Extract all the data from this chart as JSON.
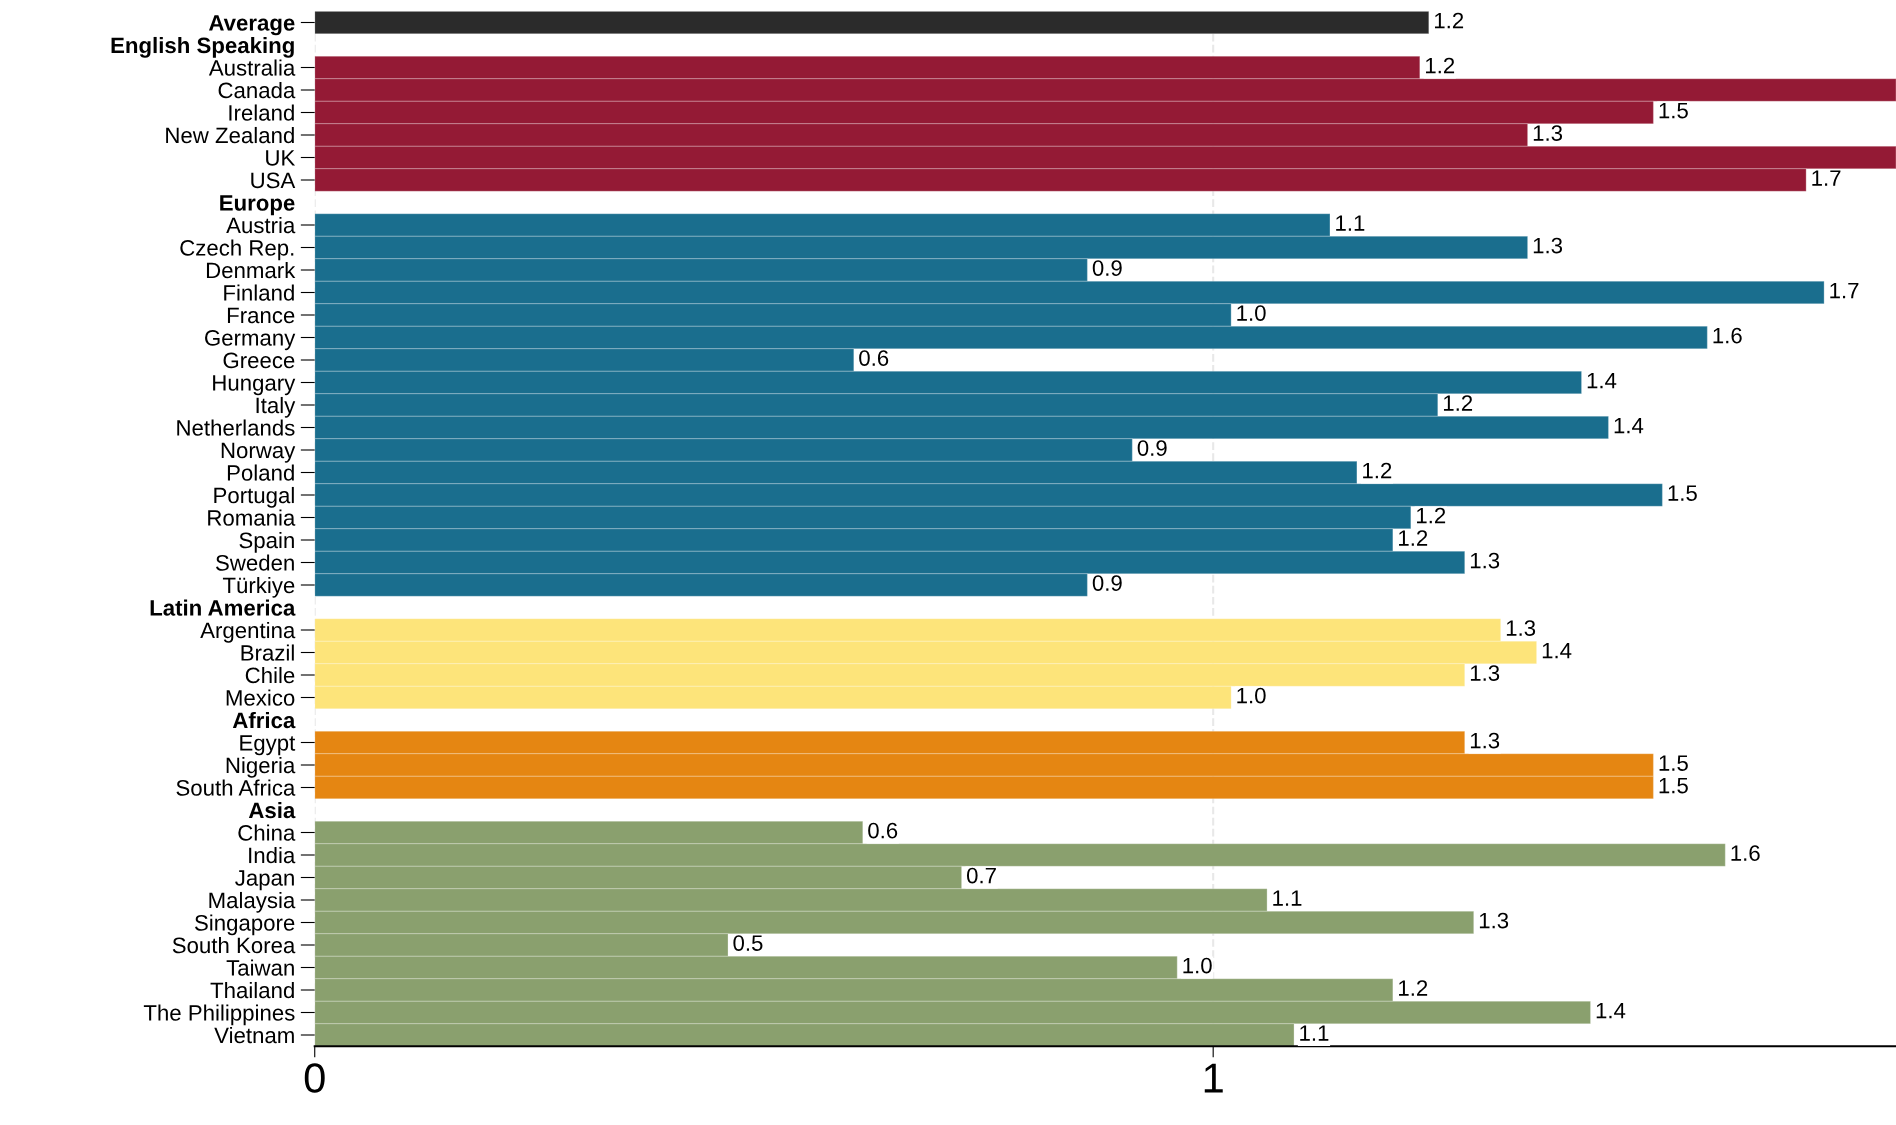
{
  "chart_data": {
    "type": "bar",
    "orientation": "horizontal",
    "categories": [
      "Average",
      "English Speaking",
      "Australia",
      "Canada",
      "Ireland",
      "New Zealand",
      "UK",
      "USA",
      "Europe",
      "Austria",
      "Czech Rep.",
      "Denmark",
      "Finland",
      "France",
      "Germany",
      "Greece",
      "Hungary",
      "Italy",
      "Netherlands",
      "Norway",
      "Poland",
      "Portugal",
      "Romania",
      "Spain",
      "Sweden",
      "Türkiye",
      "Latin America",
      "Argentina",
      "Brazil",
      "Chile",
      "Mexico",
      "Africa",
      "Egypt",
      "Nigeria",
      "South Africa",
      "Asia",
      "China",
      "India",
      "Japan",
      "Malaysia",
      "Singapore",
      "South Korea",
      "Taiwan",
      "Thailand",
      "The Philippines",
      "Vietnam"
    ],
    "series": [
      {
        "color": "#2b2b2b",
        "values": [
          1.24,
          null,
          null,
          null,
          null,
          null,
          null,
          null,
          null,
          null,
          null,
          null,
          null,
          null,
          null,
          null,
          null,
          null,
          null,
          null,
          null,
          null,
          null,
          null,
          null,
          null,
          null,
          null,
          null,
          null,
          null,
          null,
          null,
          null,
          null,
          null,
          null,
          null,
          null,
          null,
          null,
          null,
          null,
          null,
          null,
          null
        ],
        "value_labels": [
          "1.2",
          null,
          null,
          null,
          null,
          null,
          null,
          null,
          null,
          null,
          null,
          null,
          null,
          null,
          null,
          null,
          null,
          null,
          null,
          null,
          null,
          null,
          null,
          null,
          null,
          null,
          null,
          null,
          null,
          null,
          null,
          null,
          null,
          null,
          null,
          null,
          null,
          null,
          null,
          null,
          null,
          null,
          null,
          null,
          null,
          null
        ]
      },
      {
        "color": "#941a35",
        "values": [
          null,
          null,
          1.23,
          1.76,
          1.49,
          1.35,
          1.76,
          1.66,
          null,
          null,
          null,
          null,
          null,
          null,
          null,
          null,
          null,
          null,
          null,
          null,
          null,
          null,
          null,
          null,
          null,
          null,
          null,
          null,
          null,
          null,
          null,
          null,
          null,
          null,
          null,
          null,
          null,
          null,
          null,
          null,
          null,
          null,
          null,
          null,
          null,
          null
        ],
        "value_labels": [
          null,
          null,
          "1.2",
          null,
          "1.5",
          "1.3",
          null,
          "1.7",
          null,
          null,
          null,
          null,
          null,
          null,
          null,
          null,
          null,
          null,
          null,
          null,
          null,
          null,
          null,
          null,
          null,
          null,
          null,
          null,
          null,
          null,
          null,
          null,
          null,
          null,
          null,
          null,
          null,
          null,
          null,
          null,
          null,
          null,
          null,
          null,
          null,
          null
        ]
      },
      {
        "color": "#1a6e8e",
        "values": [
          null,
          null,
          null,
          null,
          null,
          null,
          null,
          null,
          null,
          1.13,
          1.35,
          0.86,
          1.68,
          1.02,
          1.55,
          0.6,
          1.41,
          1.25,
          1.44,
          0.91,
          1.16,
          1.5,
          1.22,
          1.2,
          1.28,
          0.86,
          null,
          null,
          null,
          null,
          null,
          null,
          null,
          null,
          null,
          null,
          null,
          null,
          null,
          null,
          null,
          null,
          null,
          null,
          null,
          null
        ],
        "value_labels": [
          null,
          null,
          null,
          null,
          null,
          null,
          null,
          null,
          null,
          "1.1",
          "1.3",
          "0.9",
          "1.7",
          "1.0",
          "1.6",
          "0.6",
          "1.4",
          "1.2",
          "1.4",
          "0.9",
          "1.2",
          "1.5",
          "1.2",
          "1.2",
          "1.3",
          "0.9",
          null,
          null,
          null,
          null,
          null,
          null,
          null,
          null,
          null,
          null,
          null,
          null,
          null,
          null,
          null,
          null,
          null,
          null,
          null,
          null
        ]
      },
      {
        "color": "#fde47a",
        "values": [
          null,
          null,
          null,
          null,
          null,
          null,
          null,
          null,
          null,
          null,
          null,
          null,
          null,
          null,
          null,
          null,
          null,
          null,
          null,
          null,
          null,
          null,
          null,
          null,
          null,
          null,
          null,
          1.32,
          1.36,
          1.28,
          1.02,
          null,
          null,
          null,
          null,
          null,
          null,
          null,
          null,
          null,
          null,
          null,
          null,
          null,
          null,
          null
        ],
        "value_labels": [
          null,
          null,
          null,
          null,
          null,
          null,
          null,
          null,
          null,
          null,
          null,
          null,
          null,
          null,
          null,
          null,
          null,
          null,
          null,
          null,
          null,
          null,
          null,
          null,
          null,
          null,
          null,
          "1.3",
          "1.4",
          "1.3",
          "1.0",
          null,
          null,
          null,
          null,
          null,
          null,
          null,
          null,
          null,
          null,
          null,
          null,
          null,
          null,
          null
        ]
      },
      {
        "color": "#e58612",
        "values": [
          null,
          null,
          null,
          null,
          null,
          null,
          null,
          null,
          null,
          null,
          null,
          null,
          null,
          null,
          null,
          null,
          null,
          null,
          null,
          null,
          null,
          null,
          null,
          null,
          null,
          null,
          null,
          null,
          null,
          null,
          null,
          null,
          1.28,
          1.49,
          1.49,
          null,
          null,
          null,
          null,
          null,
          null,
          null,
          null,
          null,
          null,
          null
        ],
        "value_labels": [
          null,
          null,
          null,
          null,
          null,
          null,
          null,
          null,
          null,
          null,
          null,
          null,
          null,
          null,
          null,
          null,
          null,
          null,
          null,
          null,
          null,
          null,
          null,
          null,
          null,
          null,
          null,
          null,
          null,
          null,
          null,
          null,
          "1.3",
          "1.5",
          "1.5",
          null,
          null,
          null,
          null,
          null,
          null,
          null,
          null,
          null,
          null,
          null
        ]
      },
      {
        "color": "#8aa06e",
        "values": [
          null,
          null,
          null,
          null,
          null,
          null,
          null,
          null,
          null,
          null,
          null,
          null,
          null,
          null,
          null,
          null,
          null,
          null,
          null,
          null,
          null,
          null,
          null,
          null,
          null,
          null,
          null,
          null,
          null,
          null,
          null,
          null,
          null,
          null,
          null,
          null,
          0.61,
          1.57,
          0.72,
          1.06,
          1.29,
          0.46,
          0.96,
          1.2,
          1.42,
          1.09
        ],
        "value_labels": [
          null,
          null,
          null,
          null,
          null,
          null,
          null,
          null,
          null,
          null,
          null,
          null,
          null,
          null,
          null,
          null,
          null,
          null,
          null,
          null,
          null,
          null,
          null,
          null,
          null,
          null,
          null,
          null,
          null,
          null,
          null,
          null,
          null,
          null,
          null,
          null,
          "0.6",
          "1.6",
          "0.7",
          "1.1",
          "1.3",
          "0.5",
          "1.0",
          "1.2",
          "1.4",
          "1.1"
        ]
      }
    ],
    "xlim": [
      0,
      1.76
    ],
    "xticks": [
      0,
      1
    ],
    "grid": "x"
  }
}
